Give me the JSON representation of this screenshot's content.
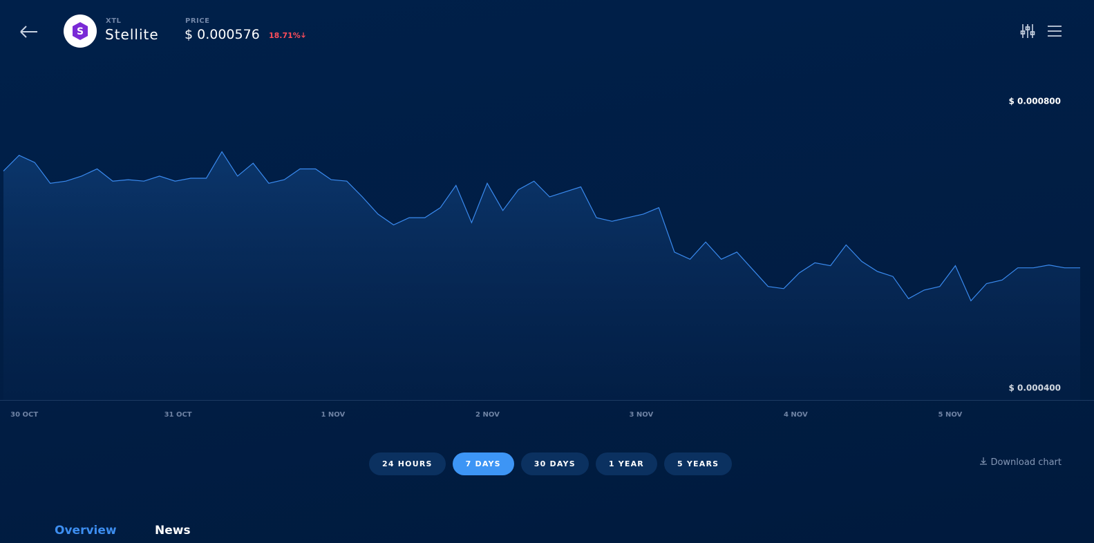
{
  "header": {
    "logo_letter": "S",
    "symbol": "XTL",
    "name": "Stellite",
    "price_label": "PRICE",
    "price": "$ 0.000576",
    "change": "18.71%"
  },
  "chart_data": {
    "type": "line",
    "color": "#3a8bf0",
    "values": [
      0.000703,
      0.000725,
      0.000715,
      0.000686,
      0.000689,
      0.000696,
      0.000706,
      0.000689,
      0.000691,
      0.000689,
      0.000696,
      0.000689,
      0.000693,
      0.000693,
      0.00073,
      0.000696,
      0.000714,
      0.000686,
      0.000691,
      0.000706,
      0.000706,
      0.000691,
      0.000689,
      0.000667,
      0.000643,
      0.000628,
      0.000638,
      0.000638,
      0.000652,
      0.000683,
      0.000631,
      0.000686,
      0.000648,
      0.000677,
      0.000689,
      0.000667,
      0.000674,
      0.000681,
      0.000638,
      0.000633,
      0.000638,
      0.000643,
      0.000652,
      0.00059,
      0.00058,
      0.000604,
      0.00058,
      0.00059,
      0.000566,
      0.000542,
      0.000539,
      0.000561,
      0.000575,
      0.000571,
      0.0006,
      0.000577,
      0.000563,
      0.000556,
      0.000525,
      0.000537,
      0.000542,
      0.000571,
      0.000522,
      0.000546,
      0.000551,
      0.000568,
      0.000568,
      0.000572,
      0.000568,
      0.000568
    ],
    "xlim": [
      0,
      69
    ],
    "xticks": [
      {
        "value": 0.45,
        "label": "30 OCT"
      },
      {
        "value": 10.3,
        "label": "31 OCT"
      },
      {
        "value": 20.35,
        "label": "1 NOV"
      },
      {
        "value": 30.25,
        "label": "2 NOV"
      },
      {
        "value": 40.1,
        "label": "3 NOV"
      },
      {
        "value": 50,
        "label": "4 NOV"
      },
      {
        "value": 59.9,
        "label": "5 NOV"
      }
    ],
    "ylim": [
      0.0004,
      0.0008
    ],
    "yticks": [
      {
        "value": 0.0004,
        "label": "$ 0.000400"
      },
      {
        "value": 0.0008,
        "label": "$ 0.000800"
      }
    ]
  },
  "range_buttons": [
    "24 HOURS",
    "7 DAYS",
    "30 DAYS",
    "1 YEAR",
    "5 YEARS"
  ],
  "active_range": 1,
  "download": "Download chart",
  "tabs": [
    "Overview",
    "News"
  ],
  "active_tab": 0
}
